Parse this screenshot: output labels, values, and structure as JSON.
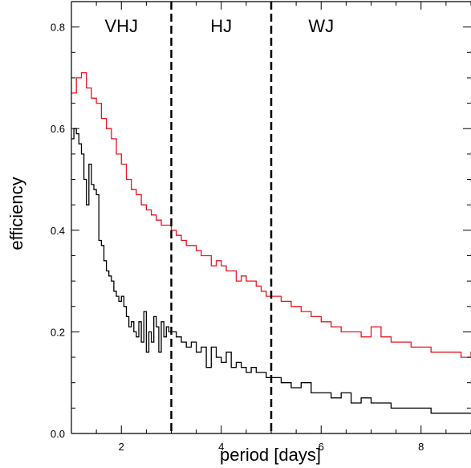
{
  "chart_data": {
    "type": "line",
    "step": true,
    "xlabel": "period [days]",
    "ylabel": "efficiency",
    "xlim": [
      1.0,
      9.0
    ],
    "ylim": [
      0.0,
      0.85
    ],
    "xticks": [
      2,
      4,
      6,
      8
    ],
    "xtick_labels": [
      "2",
      "4",
      "6",
      "8"
    ],
    "yticks": [
      0.0,
      0.2,
      0.4,
      0.6,
      0.8
    ],
    "ytick_labels": [
      "0.0",
      "0.2",
      "0.4",
      "0.6",
      "0.8"
    ],
    "grid": false,
    "vlines": [
      3.0,
      5.0
    ],
    "vline_style": "dashed",
    "regions": [
      {
        "label": "VHJ",
        "x": 2.0
      },
      {
        "label": "HJ",
        "x": 4.0
      },
      {
        "label": "WJ",
        "x": 6.0
      }
    ],
    "region_label_y": 0.79,
    "series": [
      {
        "color": "#e8141c",
        "x": [
          1.0,
          1.1,
          1.2,
          1.3,
          1.4,
          1.5,
          1.6,
          1.7,
          1.8,
          1.9,
          2.0,
          2.1,
          2.2,
          2.3,
          2.4,
          2.5,
          2.6,
          2.7,
          2.8,
          2.9,
          3.0,
          3.1,
          3.2,
          3.3,
          3.4,
          3.5,
          3.6,
          3.7,
          3.8,
          3.9,
          4.0,
          4.1,
          4.2,
          4.3,
          4.4,
          4.5,
          4.6,
          4.7,
          4.8,
          4.9,
          5.0,
          5.2,
          5.4,
          5.6,
          5.8,
          6.0,
          6.2,
          6.4,
          6.6,
          6.8,
          7.0,
          7.2,
          7.4,
          7.6,
          7.8,
          8.0,
          8.2,
          8.4,
          8.6,
          8.8,
          9.0
        ],
        "y": [
          0.67,
          0.7,
          0.71,
          0.68,
          0.66,
          0.65,
          0.62,
          0.6,
          0.58,
          0.55,
          0.53,
          0.5,
          0.48,
          0.47,
          0.45,
          0.44,
          0.43,
          0.42,
          0.41,
          0.41,
          0.4,
          0.39,
          0.38,
          0.37,
          0.37,
          0.36,
          0.35,
          0.35,
          0.33,
          0.34,
          0.33,
          0.32,
          0.32,
          0.3,
          0.31,
          0.3,
          0.3,
          0.29,
          0.28,
          0.27,
          0.27,
          0.26,
          0.25,
          0.24,
          0.23,
          0.22,
          0.21,
          0.2,
          0.2,
          0.19,
          0.21,
          0.19,
          0.18,
          0.18,
          0.17,
          0.17,
          0.16,
          0.16,
          0.16,
          0.15,
          0.16
        ]
      },
      {
        "color": "#000000",
        "x": [
          1.0,
          1.05,
          1.1,
          1.15,
          1.2,
          1.25,
          1.3,
          1.35,
          1.4,
          1.45,
          1.5,
          1.55,
          1.6,
          1.65,
          1.7,
          1.75,
          1.8,
          1.85,
          1.9,
          1.95,
          2.0,
          2.05,
          2.1,
          2.15,
          2.2,
          2.25,
          2.3,
          2.35,
          2.4,
          2.45,
          2.5,
          2.55,
          2.6,
          2.65,
          2.7,
          2.75,
          2.8,
          2.85,
          2.9,
          2.95,
          3.0,
          3.1,
          3.2,
          3.3,
          3.4,
          3.5,
          3.6,
          3.7,
          3.8,
          3.9,
          4.0,
          4.1,
          4.2,
          4.3,
          4.4,
          4.5,
          4.6,
          4.7,
          4.8,
          4.9,
          5.0,
          5.2,
          5.4,
          5.6,
          5.8,
          6.0,
          6.2,
          6.4,
          6.6,
          6.8,
          7.0,
          7.2,
          7.4,
          7.6,
          7.8,
          8.0,
          8.2,
          8.4,
          8.6,
          8.8,
          9.0
        ],
        "y": [
          0.58,
          0.6,
          0.59,
          0.57,
          0.55,
          0.5,
          0.45,
          0.53,
          0.49,
          0.48,
          0.47,
          0.38,
          0.37,
          0.34,
          0.32,
          0.31,
          0.3,
          0.28,
          0.27,
          0.26,
          0.27,
          0.25,
          0.23,
          0.21,
          0.22,
          0.2,
          0.19,
          0.22,
          0.18,
          0.24,
          0.16,
          0.2,
          0.18,
          0.23,
          0.21,
          0.16,
          0.22,
          0.19,
          0.21,
          0.2,
          0.2,
          0.19,
          0.18,
          0.17,
          0.18,
          0.16,
          0.17,
          0.13,
          0.17,
          0.15,
          0.14,
          0.16,
          0.13,
          0.14,
          0.13,
          0.12,
          0.13,
          0.12,
          0.12,
          0.11,
          0.11,
          0.1,
          0.09,
          0.1,
          0.08,
          0.08,
          0.07,
          0.08,
          0.06,
          0.07,
          0.06,
          0.06,
          0.05,
          0.05,
          0.05,
          0.05,
          0.04,
          0.04,
          0.04,
          0.04,
          0.04
        ]
      }
    ]
  }
}
